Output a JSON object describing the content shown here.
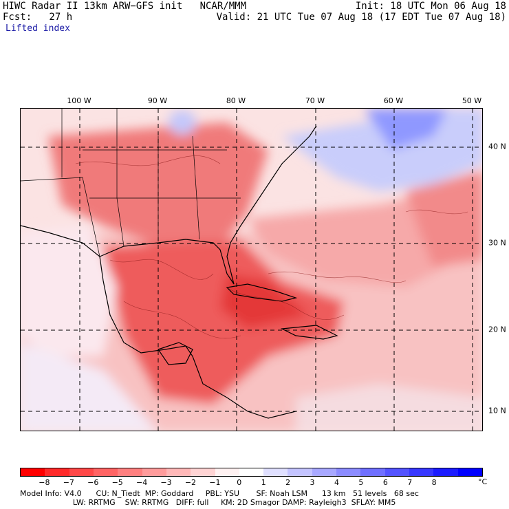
{
  "header": {
    "line1_left": "HIWC Radar II 13km ARW−GFS init   NCAR/MMM",
    "line1_right": "Init: 18 UTC Mon 06 Aug 18",
    "line2_left": "Fcst:   27 h",
    "line2_right": "Valid: 21 UTC Tue 07 Aug 18 (17 EDT Tue 07 Aug 18)",
    "field": "Lifted index"
  },
  "map": {
    "lon_labels": [
      "100 W",
      "90 W",
      "80 W",
      "70 W",
      "60 W",
      "50 W"
    ],
    "lat_labels": [
      "40 N",
      "30 N",
      "20 N",
      "10 N"
    ],
    "colors": {
      "ocean_warm": "#f7c9c9",
      "land_hot": "#f06a6a",
      "very_hot": "#e63b3b",
      "cool_blue": "#c8d0ff",
      "deep_blue": "#8c96ff",
      "neutral": "#fbe6e6"
    }
  },
  "colorbar": {
    "labels": [
      "−8",
      "−7",
      "−6",
      "−5",
      "−4",
      "−3",
      "−2",
      "−1",
      "0",
      "1",
      "2",
      "3",
      "4",
      "5",
      "6",
      "7",
      "8"
    ],
    "unit": "°C",
    "colors": [
      "#ff0000",
      "#ff2a2a",
      "#ff4848",
      "#ff6464",
      "#ff8080",
      "#ff9c9c",
      "#ffb8b8",
      "#ffd4d4",
      "#fff2f2",
      "#ffffff",
      "#e0e0ff",
      "#c4c4ff",
      "#a8a8ff",
      "#8c8cff",
      "#7070ff",
      "#5454ff",
      "#3838ff",
      "#1c1cff",
      "#0000ff"
    ]
  },
  "model_info": {
    "line1": "Model Info: V4.0      CU: N_Tiedt  MP: Goddard     PBL: YSU       SF: Noah LSM      13 km   51 levels   68 sec",
    "line2": "                      LW: RRTMG    SW: RRTMG   DIFF: full     KM: 2D Smagor DAMP: Rayleigh3  SFLAY: MM5"
  }
}
